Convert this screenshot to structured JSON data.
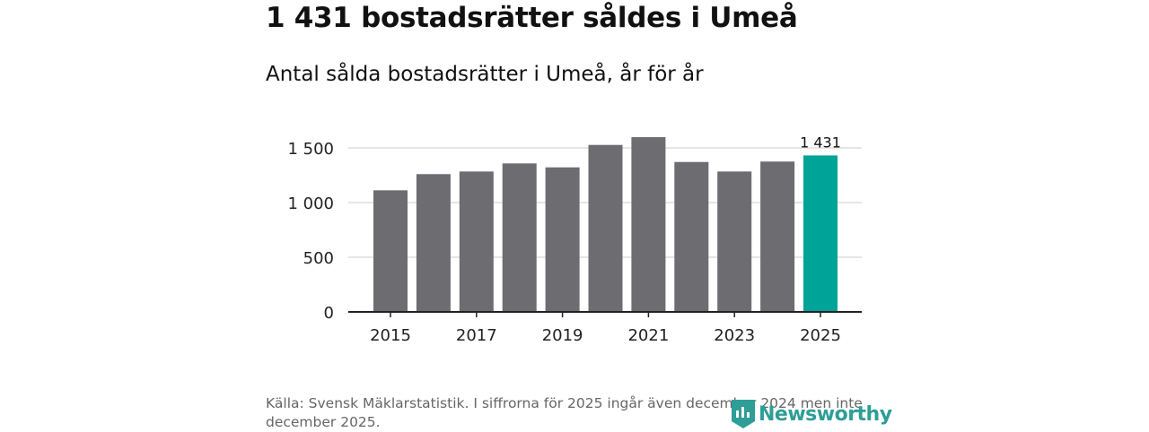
{
  "title": "1 431 bostadsrätter såldes i Umeå",
  "subtitle": "Antal sålda bostadsrätter i Umeå, år för år",
  "source": "Källa: Svensk Mäklarstatistik. I siffrorna för 2025 ingår även december 2024 men inte december 2025.",
  "logo_text": "Newsworthy",
  "colors": {
    "bar": "#6d6c71",
    "highlight": "#00a398",
    "grid": "#dddddd",
    "logo": "#2e9e96"
  },
  "chart_data": {
    "type": "bar",
    "title": "Antal sålda bostadsrätter i Umeå, år för år",
    "xlabel": "",
    "ylabel": "",
    "categories": [
      "2015",
      "2016",
      "2017",
      "2018",
      "2019",
      "2020",
      "2021",
      "2022",
      "2023",
      "2024",
      "2025"
    ],
    "values": [
      1112,
      1260,
      1284,
      1358,
      1322,
      1527,
      1598,
      1371,
      1284,
      1375,
      1431
    ],
    "highlight_index": 10,
    "data_label": "1 431",
    "ylim": [
      0,
      1500
    ],
    "yticks": [
      0,
      500,
      1000,
      1500
    ],
    "ytick_labels": [
      "0",
      "500",
      "1 000",
      "1 500"
    ],
    "xtick_labels": [
      "2015",
      "2017",
      "2019",
      "2021",
      "2023",
      "2025"
    ],
    "grid": true
  }
}
